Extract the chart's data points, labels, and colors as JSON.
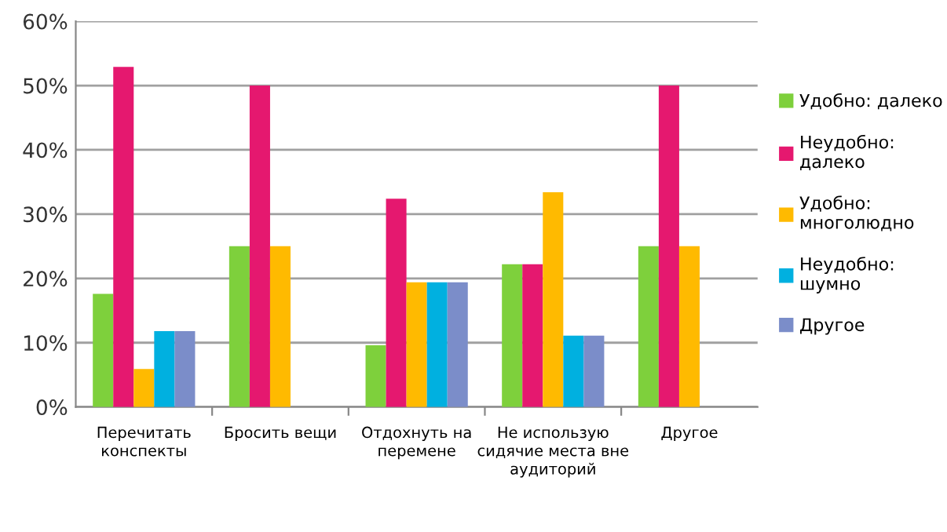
{
  "chart_data": {
    "type": "bar",
    "categories": [
      "Перечитать конспекты",
      "Бросить вещи",
      "Отдохнуть на перемене",
      "Не использую сидячие места вне аудиторий",
      "Другое"
    ],
    "series": [
      {
        "name": "Удобно: далеко",
        "color": "#7ed03c",
        "values": [
          17.6,
          25,
          9.6,
          22.2,
          25
        ]
      },
      {
        "name": "Неудобно: далеко",
        "color": "#e5186f",
        "values": [
          52.9,
          50,
          32.4,
          22.2,
          50
        ]
      },
      {
        "name": "Удобно: многолюдно",
        "color": "#ffba00",
        "values": [
          5.9,
          25,
          19.4,
          33.4,
          25
        ]
      },
      {
        "name": "Неудобно: шумно",
        "color": "#00b0e0",
        "values": [
          11.8,
          0,
          19.4,
          11.1,
          0
        ]
      },
      {
        "name": "Другое",
        "color": "#7b8dc9",
        "values": [
          11.8,
          0,
          19.4,
          11.1,
          0
        ]
      }
    ],
    "ylim": [
      0,
      60
    ],
    "yticks": [
      {
        "value": 0,
        "label": "0%"
      },
      {
        "value": 10,
        "label": "10%"
      },
      {
        "value": 20,
        "label": "20%"
      },
      {
        "value": 30,
        "label": "30%"
      },
      {
        "value": 40,
        "label": "40%"
      },
      {
        "value": 50,
        "label": "50%"
      },
      {
        "value": 60,
        "label": "60%"
      }
    ],
    "grid": "y",
    "legend": "right"
  }
}
